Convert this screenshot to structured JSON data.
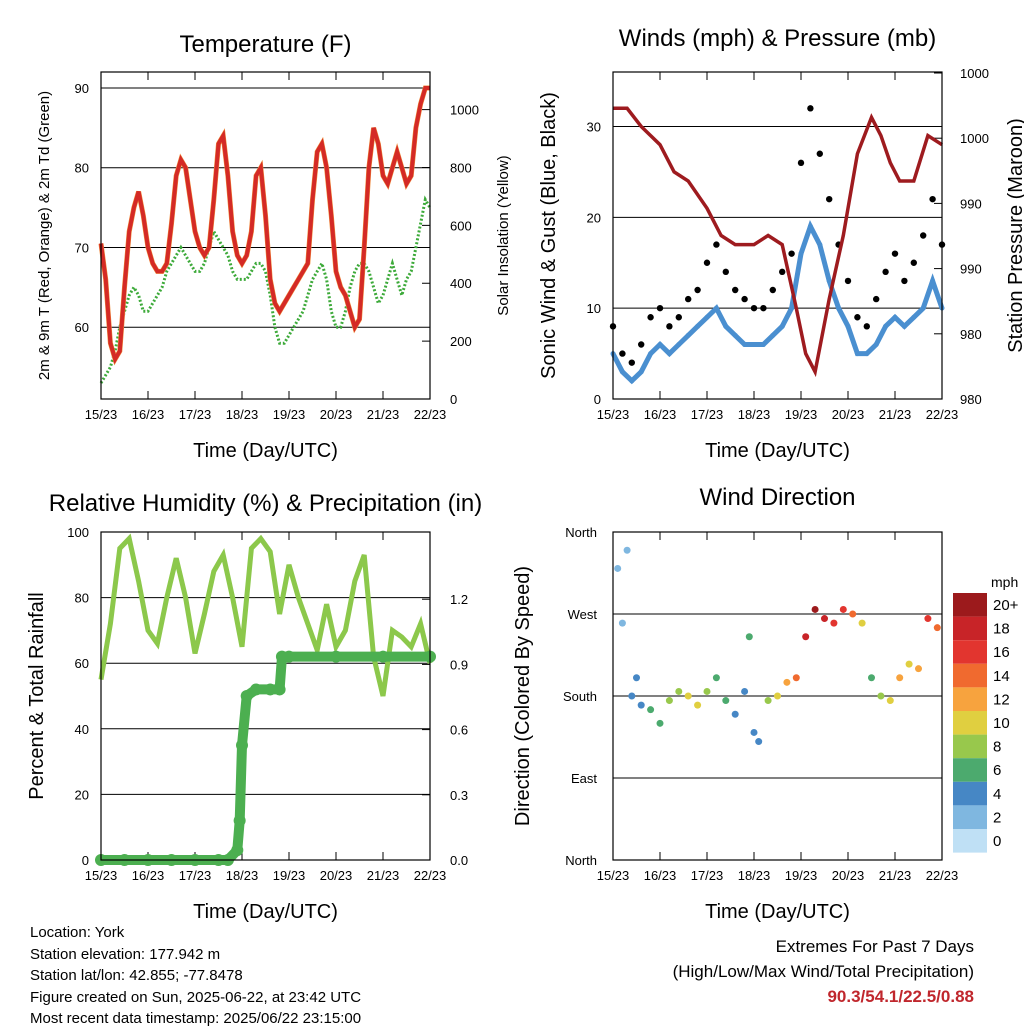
{
  "footer": {
    "location": "Location: York",
    "elevation": "Station elevation: 177.942 m",
    "latlon": "Station lat/lon: 42.855; -77.8478",
    "created": "Figure created on Sun, 2025-06-22, at 23:42 UTC",
    "recent": "Most recent data timestamp: 2025/06/22 23:15:00",
    "extremes_title": "Extremes For Past 7 Days",
    "extremes_subtitle": "(High/Low/Max Wind/Total Precipitation)",
    "extremes_values": "90.3/54.1/22.5/0.88"
  },
  "chart_data": [
    {
      "id": "temperature",
      "type": "line",
      "title": "Temperature (F)",
      "xlabel": "Time (Day/UTC)",
      "ylabel": "2m & 9m T (Red, Orange) & 2m Td (Green)",
      "y2label": "Solar Insolation (Yellow)",
      "xticks": [
        "15/23",
        "16/23",
        "17/23",
        "18/23",
        "19/23",
        "20/23",
        "21/23",
        "22/23"
      ],
      "xlim": [
        0,
        7
      ],
      "ylim": [
        51,
        92
      ],
      "yticks": [
        60,
        70,
        80,
        90
      ],
      "y2lim": [
        0,
        1130
      ],
      "y2ticks": [
        0,
        200,
        400,
        600,
        800,
        1000
      ],
      "series": [
        {
          "name": "2m T",
          "color": "#d42a26",
          "x": [
            0,
            0.1,
            0.2,
            0.3,
            0.4,
            0.5,
            0.6,
            0.7,
            0.8,
            0.9,
            1.0,
            1.1,
            1.2,
            1.3,
            1.4,
            1.5,
            1.6,
            1.7,
            1.8,
            1.9,
            2.0,
            2.1,
            2.2,
            2.3,
            2.4,
            2.5,
            2.6,
            2.7,
            2.8,
            2.9,
            3.0,
            3.1,
            3.2,
            3.3,
            3.4,
            3.5,
            3.6,
            3.7,
            3.8,
            3.9,
            4.0,
            4.1,
            4.2,
            4.3,
            4.4,
            4.5,
            4.6,
            4.7,
            4.8,
            4.9,
            5.0,
            5.1,
            5.2,
            5.3,
            5.4,
            5.5,
            5.6,
            5.7,
            5.8,
            5.9,
            6.0,
            6.1,
            6.2,
            6.3,
            6.4,
            6.5,
            6.6,
            6.7,
            6.8,
            6.9,
            7.0
          ],
          "y": [
            70.5,
            66,
            58,
            56,
            57,
            65,
            72,
            75,
            77,
            74,
            70,
            68,
            67,
            67,
            68,
            73,
            79,
            81,
            80,
            76,
            72,
            70,
            69,
            70,
            76,
            83,
            84,
            79,
            72,
            69,
            68,
            69,
            72,
            79,
            80,
            74,
            66,
            63,
            62,
            63,
            64,
            65,
            66,
            67,
            68,
            76,
            82,
            83,
            80,
            74,
            67,
            65,
            64,
            62,
            60,
            61,
            70,
            80,
            85,
            83,
            79,
            78,
            80,
            82,
            80,
            78,
            79,
            85,
            88,
            90,
            90
          ]
        },
        {
          "name": "Td",
          "color": "#3daa3a",
          "x": [
            0,
            0.1,
            0.2,
            0.3,
            0.4,
            0.5,
            0.6,
            0.7,
            0.8,
            0.9,
            1.0,
            1.1,
            1.2,
            1.3,
            1.4,
            1.5,
            1.6,
            1.7,
            1.8,
            1.9,
            2.0,
            2.1,
            2.2,
            2.3,
            2.4,
            2.5,
            2.6,
            2.7,
            2.8,
            2.9,
            3.0,
            3.1,
            3.2,
            3.3,
            3.4,
            3.5,
            3.6,
            3.7,
            3.8,
            3.9,
            4.0,
            4.1,
            4.2,
            4.3,
            4.4,
            4.5,
            4.6,
            4.7,
            4.8,
            4.9,
            5.0,
            5.1,
            5.2,
            5.3,
            5.4,
            5.5,
            5.6,
            5.7,
            5.8,
            5.9,
            6.0,
            6.1,
            6.2,
            6.3,
            6.4,
            6.5,
            6.6,
            6.7,
            6.8,
            6.9,
            7.0
          ],
          "y": [
            53,
            54,
            55,
            57,
            60,
            62,
            64,
            65,
            64,
            62,
            62,
            63,
            64,
            65,
            67,
            68,
            69,
            70,
            69,
            68,
            67,
            67,
            68,
            70,
            72,
            71,
            70,
            69,
            67,
            66,
            66,
            66,
            67,
            68,
            68,
            67,
            64,
            60,
            58,
            58,
            59,
            60,
            61,
            62,
            64,
            66,
            67,
            68,
            66,
            62,
            60,
            60,
            62,
            65,
            67,
            68,
            68,
            67,
            65,
            63,
            64,
            66,
            68,
            66,
            64,
            66,
            67,
            70,
            73,
            76,
            75
          ]
        }
      ]
    },
    {
      "id": "winds",
      "type": "scatter",
      "title": "Winds (mph) & Pressure (mb)",
      "xlabel": "Time (Day/UTC)",
      "ylabel": "Sonic Wind & Gust (Blue, Black)",
      "y2label": "Station Pressure (Maroon)",
      "xticks": [
        "15/23",
        "16/23",
        "17/23",
        "18/23",
        "19/23",
        "20/23",
        "21/23",
        "22/23"
      ],
      "xlim": [
        0,
        7
      ],
      "ylim": [
        0,
        36
      ],
      "yticks": [
        0,
        10,
        20,
        30
      ],
      "y2ticklabels": [
        "980",
        "980",
        "990",
        "990",
        "1000",
        "1000"
      ],
      "series": [
        {
          "name": "Gust",
          "color": "#000000",
          "x": [
            0,
            0.2,
            0.4,
            0.6,
            0.8,
            1.0,
            1.2,
            1.4,
            1.6,
            1.8,
            2.0,
            2.2,
            2.4,
            2.6,
            2.8,
            3.0,
            3.2,
            3.4,
            3.6,
            3.8,
            4.0,
            4.2,
            4.4,
            4.6,
            4.8,
            5.0,
            5.2,
            5.4,
            5.6,
            5.8,
            6.0,
            6.2,
            6.4,
            6.6,
            6.8,
            7.0
          ],
          "y": [
            8,
            5,
            4,
            6,
            9,
            10,
            8,
            9,
            11,
            12,
            15,
            17,
            14,
            12,
            11,
            10,
            10,
            12,
            14,
            16,
            26,
            32,
            27,
            22,
            17,
            13,
            9,
            8,
            11,
            14,
            16,
            13,
            15,
            18,
            22,
            17
          ]
        },
        {
          "name": "Wind",
          "color": "#4a8fd0",
          "x": [
            0,
            0.2,
            0.4,
            0.6,
            0.8,
            1.0,
            1.2,
            1.4,
            1.6,
            1.8,
            2.0,
            2.2,
            2.4,
            2.6,
            2.8,
            3.0,
            3.2,
            3.4,
            3.6,
            3.8,
            4.0,
            4.2,
            4.4,
            4.6,
            4.8,
            5.0,
            5.2,
            5.4,
            5.6,
            5.8,
            6.0,
            6.2,
            6.4,
            6.6,
            6.8,
            7.0
          ],
          "y": [
            5,
            3,
            2,
            3,
            5,
            6,
            5,
            6,
            7,
            8,
            9,
            10,
            8,
            7,
            6,
            6,
            6,
            7,
            8,
            10,
            16,
            19,
            17,
            13,
            10,
            8,
            5,
            5,
            6,
            8,
            9,
            8,
            9,
            10,
            13,
            10
          ]
        },
        {
          "name": "Pressure",
          "color": "#9e1b1f",
          "x": [
            0,
            0.3,
            0.6,
            1.0,
            1.3,
            1.6,
            2.0,
            2.3,
            2.6,
            3.0,
            3.3,
            3.6,
            3.9,
            4.1,
            4.3,
            4.6,
            4.9,
            5.2,
            5.5,
            5.7,
            5.9,
            6.1,
            6.4,
            6.7,
            7.0
          ],
          "y": [
            32,
            32,
            30,
            28,
            25,
            24,
            21,
            18,
            17,
            17,
            18,
            17,
            10,
            5,
            3,
            11,
            18,
            27,
            31,
            29,
            26,
            24,
            24,
            29,
            28
          ]
        }
      ]
    },
    {
      "id": "humidity",
      "type": "line",
      "title": "Relative Humidity (%) & Precipitation (in)",
      "xlabel": "Time (Day/UTC)",
      "ylabel": "Percent & Total Rainfall",
      "xticks": [
        "15/23",
        "16/23",
        "17/23",
        "18/23",
        "19/23",
        "20/23",
        "21/23",
        "22/23"
      ],
      "xlim": [
        0,
        7
      ],
      "ylim": [
        0,
        100
      ],
      "yticks": [
        0,
        20,
        40,
        60,
        80,
        100
      ],
      "y2ticklabels": [
        "0.0",
        "0.3",
        "0.6",
        "0.9",
        "1.2"
      ],
      "series": [
        {
          "name": "RH",
          "color": "#8cc84b",
          "x": [
            0,
            0.2,
            0.4,
            0.6,
            0.8,
            1.0,
            1.2,
            1.4,
            1.6,
            1.8,
            2.0,
            2.2,
            2.4,
            2.6,
            2.8,
            3.0,
            3.2,
            3.4,
            3.6,
            3.8,
            4.0,
            4.2,
            4.4,
            4.6,
            4.8,
            5.0,
            5.2,
            5.4,
            5.6,
            5.8,
            6.0,
            6.2,
            6.4,
            6.6,
            6.8,
            7.0
          ],
          "y": [
            55,
            72,
            95,
            98,
            85,
            70,
            66,
            80,
            92,
            80,
            63,
            75,
            88,
            93,
            80,
            65,
            95,
            98,
            94,
            75,
            90,
            80,
            72,
            64,
            78,
            65,
            70,
            85,
            93,
            62,
            50,
            70,
            68,
            65,
            72,
            60
          ]
        },
        {
          "name": "Precip",
          "color": "#4caf50",
          "x": [
            0,
            0.5,
            1.0,
            1.5,
            2.0,
            2.5,
            2.7,
            2.9,
            2.95,
            3.0,
            3.1,
            3.3,
            3.6,
            3.8,
            3.85,
            4.0,
            5.0,
            6.0,
            7.0
          ],
          "y": [
            0,
            0,
            0,
            0,
            0,
            0,
            0,
            3,
            12,
            35,
            50,
            52,
            52,
            52,
            62,
            62,
            62,
            62,
            62
          ]
        }
      ]
    },
    {
      "id": "direction",
      "type": "scatter",
      "title": "Wind Direction",
      "xlabel": "Time (Day/UTC)",
      "ylabel": "Direction (Colored By Speed)",
      "xticks": [
        "15/23",
        "16/23",
        "17/23",
        "18/23",
        "19/23",
        "20/23",
        "21/23",
        "22/23"
      ],
      "xlim": [
        0,
        7
      ],
      "ylim": [
        0,
        360
      ],
      "yticks": [
        0,
        90,
        180,
        270,
        360
      ],
      "yticklabels": [
        "North",
        "East",
        "South",
        "West",
        "North"
      ],
      "legend_title": "mph",
      "legend_labels": [
        "20+",
        "18",
        "16",
        "14",
        "12",
        "10",
        "8",
        "6",
        "4",
        "2",
        "0"
      ],
      "legend_colors": [
        "#9c1a1c",
        "#c82428",
        "#e2352f",
        "#f06a2f",
        "#f7a33e",
        "#e0cf40",
        "#98c84c",
        "#4caa6e",
        "#4687c5",
        "#7fb7e0",
        "#bfe0f5"
      ],
      "points": {
        "x": [
          0.1,
          0.2,
          0.3,
          0.4,
          0.5,
          0.6,
          0.8,
          1.0,
          1.2,
          1.4,
          1.6,
          1.8,
          2.0,
          2.2,
          2.4,
          2.6,
          2.8,
          2.9,
          3.0,
          3.1,
          3.3,
          3.5,
          3.7,
          3.9,
          4.1,
          4.3,
          4.5,
          4.7,
          4.9,
          5.1,
          5.3,
          5.5,
          5.7,
          5.9,
          6.1,
          6.3,
          6.5,
          6.7,
          6.9
        ],
        "y": [
          320,
          260,
          340,
          180,
          200,
          170,
          165,
          150,
          175,
          185,
          180,
          170,
          185,
          200,
          175,
          160,
          185,
          245,
          140,
          130,
          175,
          180,
          195,
          200,
          245,
          275,
          265,
          260,
          275,
          270,
          260,
          200,
          180,
          175,
          200,
          215,
          210,
          265,
          255
        ],
        "s": [
          1,
          2,
          2,
          3,
          4,
          4,
          5,
          6,
          8,
          7,
          9,
          10,
          8,
          6,
          5,
          4,
          3,
          5,
          4,
          4,
          8,
          9,
          12,
          14,
          17,
          20,
          18,
          15,
          16,
          13,
          10,
          6,
          7,
          9,
          11,
          10,
          12,
          16,
          13
        ]
      }
    }
  ]
}
